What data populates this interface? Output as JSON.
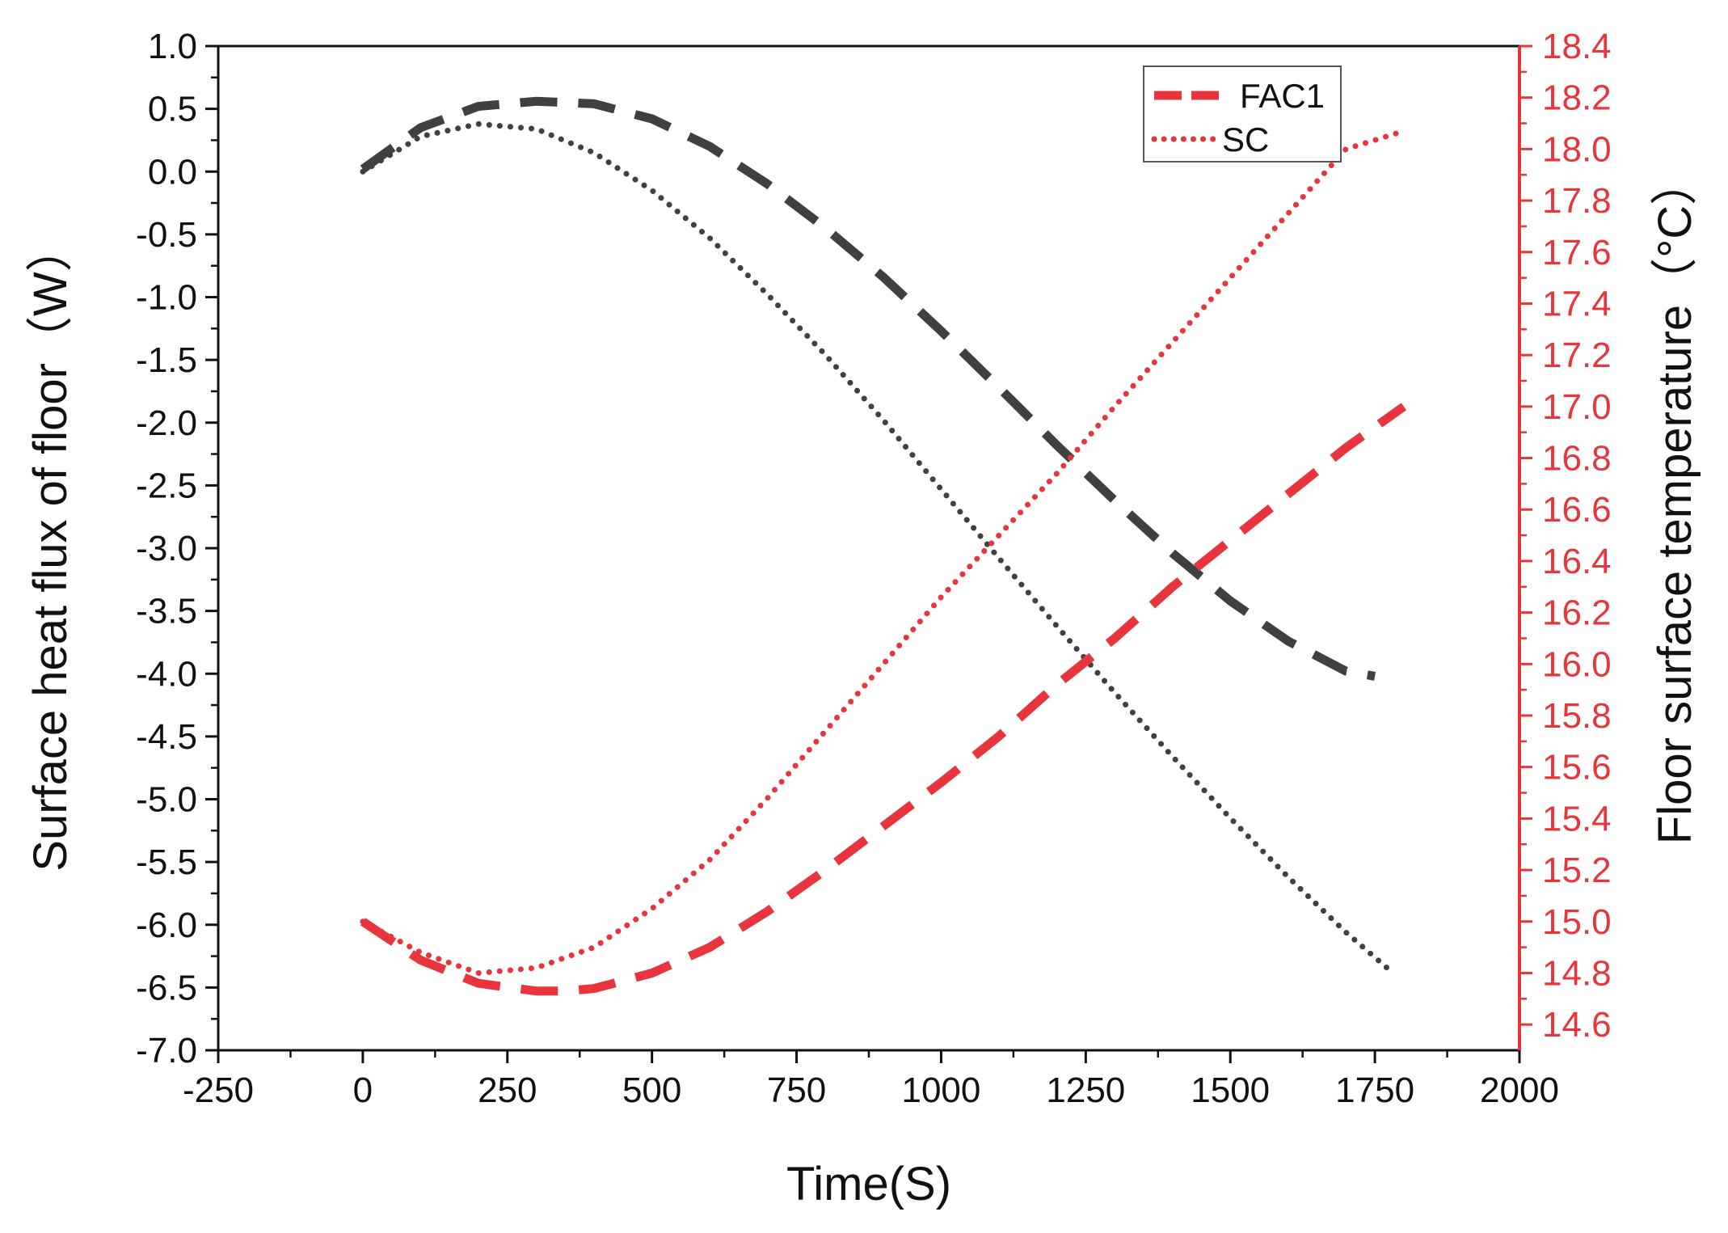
{
  "chart_data": {
    "type": "line",
    "xlabel": "Time(S)",
    "ylabel_left": "Surface heat flux of floor（W）",
    "ylabel_right": "Floor surface temperature（°C）",
    "xlim": [
      -250,
      2000
    ],
    "xticks": [
      "-250",
      "0",
      "250",
      "500",
      "750",
      "1000",
      "1250",
      "1500",
      "1750",
      "2000"
    ],
    "ylim_left": [
      -7.0,
      1.0
    ],
    "yticks_left": [
      "1.0",
      "0.5",
      "0.0",
      "-0.5",
      "-1.0",
      "-1.5",
      "-2.0",
      "-2.5",
      "-3.0",
      "-3.5",
      "-4.0",
      "-4.5",
      "-5.0",
      "-5.5",
      "-6.0",
      "-6.5",
      "-7.0"
    ],
    "ylim_right": [
      14.5,
      18.4
    ],
    "yticks_right": [
      "18.4",
      "18.2",
      "18.0",
      "17.8",
      "17.6",
      "17.4",
      "17.2",
      "17.0",
      "16.8",
      "16.6",
      "16.4",
      "16.2",
      "16.0",
      "15.8",
      "15.6",
      "15.4",
      "15.2",
      "15.0",
      "14.8",
      "14.6"
    ],
    "legend": {
      "position": "top-right",
      "entries": [
        "FAC1",
        "SC"
      ]
    },
    "colors": {
      "flux": "#404040",
      "temperature": "#e8353d",
      "axis_left": "#111111",
      "axis_right": "#e8353d"
    },
    "series": [
      {
        "name": "FAC1",
        "quantity": "heat flux",
        "axis": "left",
        "style": "dashed",
        "x": [
          0,
          100,
          200,
          300,
          400,
          500,
          600,
          700,
          800,
          900,
          1000,
          1100,
          1200,
          1300,
          1400,
          1500,
          1600,
          1700,
          1750
        ],
        "values": [
          0.02,
          0.35,
          0.52,
          0.56,
          0.54,
          0.42,
          0.2,
          -0.1,
          -0.45,
          -0.84,
          -1.27,
          -1.72,
          -2.18,
          -2.62,
          -3.04,
          -3.42,
          -3.74,
          -3.98,
          -4.02
        ]
      },
      {
        "name": "SC",
        "quantity": "heat flux",
        "axis": "left",
        "style": "dotted",
        "x": [
          0,
          100,
          200,
          300,
          400,
          500,
          600,
          700,
          800,
          900,
          1000,
          1100,
          1200,
          1300,
          1400,
          1500,
          1600,
          1700,
          1780
        ],
        "values": [
          0.0,
          0.28,
          0.38,
          0.34,
          0.15,
          -0.15,
          -0.53,
          -0.98,
          -1.46,
          -1.98,
          -2.53,
          -3.08,
          -3.62,
          -4.15,
          -4.66,
          -5.15,
          -5.62,
          -6.06,
          -6.38
        ]
      },
      {
        "name": "FAC1",
        "quantity": "temperature",
        "axis": "right",
        "style": "dashed",
        "x": [
          0,
          100,
          200,
          300,
          350,
          400,
          500,
          600,
          700,
          800,
          900,
          1000,
          1100,
          1200,
          1300,
          1400,
          1500,
          1600,
          1700,
          1800
        ],
        "values": [
          15.0,
          14.85,
          14.76,
          14.73,
          14.73,
          14.74,
          14.8,
          14.9,
          15.04,
          15.2,
          15.37,
          15.54,
          15.72,
          15.92,
          16.1,
          16.3,
          16.48,
          16.66,
          16.84,
          17.0
        ]
      },
      {
        "name": "SC",
        "quantity": "temperature",
        "axis": "right",
        "style": "dotted",
        "x": [
          0,
          100,
          200,
          300,
          400,
          500,
          600,
          700,
          800,
          900,
          1000,
          1100,
          1200,
          1300,
          1400,
          1500,
          1600,
          1700,
          1800
        ],
        "values": [
          15.0,
          14.88,
          14.8,
          14.82,
          14.9,
          15.05,
          15.24,
          15.48,
          15.74,
          16.0,
          16.26,
          16.5,
          16.74,
          17.0,
          17.25,
          17.5,
          17.75,
          18.0,
          18.07
        ]
      }
    ]
  }
}
